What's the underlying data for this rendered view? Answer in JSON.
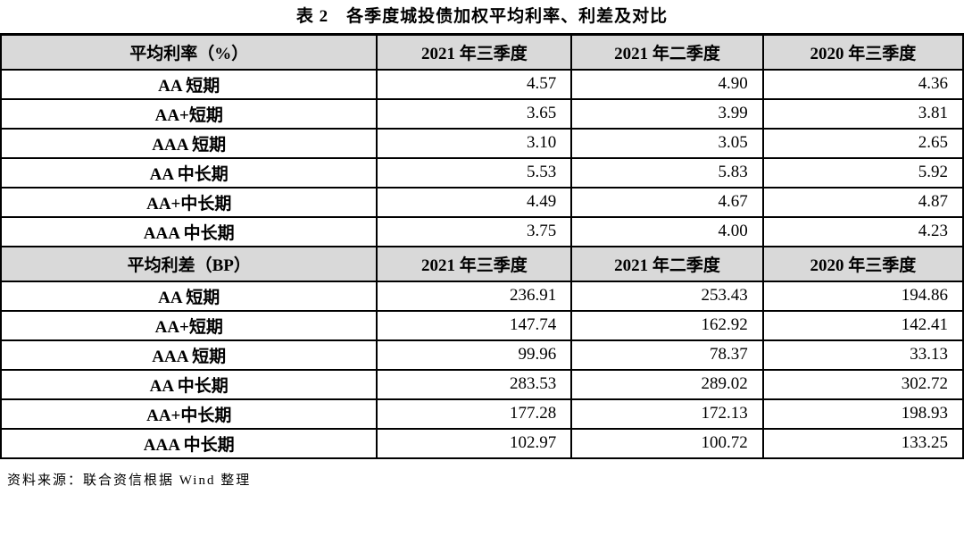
{
  "title": "表 2　各季度城投债加权平均利率、利差及对比",
  "source_note": "资料来源：联合资信根据 Wind 整理",
  "colors": {
    "header_bg": "#d9d9d9",
    "border": "#000000",
    "text": "#000000",
    "background": "#ffffff"
  },
  "sections": [
    {
      "header_label": "平均利率（%）",
      "columns": [
        "2021 年三季度",
        "2021 年二季度",
        "2020 年三季度"
      ],
      "rows": [
        {
          "label": "AA 短期",
          "values": [
            "4.57",
            "4.90",
            "4.36"
          ]
        },
        {
          "label": "AA+短期",
          "values": [
            "3.65",
            "3.99",
            "3.81"
          ]
        },
        {
          "label": "AAA 短期",
          "values": [
            "3.10",
            "3.05",
            "2.65"
          ]
        },
        {
          "label": "AA 中长期",
          "values": [
            "5.53",
            "5.83",
            "5.92"
          ]
        },
        {
          "label": "AA+中长期",
          "values": [
            "4.49",
            "4.67",
            "4.87"
          ]
        },
        {
          "label": "AAA 中长期",
          "values": [
            "3.75",
            "4.00",
            "4.23"
          ]
        }
      ]
    },
    {
      "header_label": "平均利差（BP）",
      "columns": [
        "2021 年三季度",
        "2021 年二季度",
        "2020 年三季度"
      ],
      "rows": [
        {
          "label": "AA 短期",
          "values": [
            "236.91",
            "253.43",
            "194.86"
          ]
        },
        {
          "label": "AA+短期",
          "values": [
            "147.74",
            "162.92",
            "142.41"
          ]
        },
        {
          "label": "AAA 短期",
          "values": [
            "99.96",
            "78.37",
            "33.13"
          ]
        },
        {
          "label": "AA 中长期",
          "values": [
            "283.53",
            "289.02",
            "302.72"
          ]
        },
        {
          "label": "AA+中长期",
          "values": [
            "177.28",
            "172.13",
            "198.93"
          ]
        },
        {
          "label": "AAA 中长期",
          "values": [
            "102.97",
            "100.72",
            "133.25"
          ]
        }
      ]
    }
  ],
  "chart_data": [
    {
      "type": "table",
      "title": "平均利率（%）",
      "categories": [
        "AA 短期",
        "AA+短期",
        "AAA 短期",
        "AA 中长期",
        "AA+中长期",
        "AAA 中长期"
      ],
      "series": [
        {
          "name": "2021 年三季度",
          "values": [
            4.57,
            3.65,
            3.1,
            5.53,
            4.49,
            3.75
          ]
        },
        {
          "name": "2021 年二季度",
          "values": [
            4.9,
            3.99,
            3.05,
            5.83,
            4.67,
            4.0
          ]
        },
        {
          "name": "2020 年三季度",
          "values": [
            4.36,
            3.81,
            2.65,
            5.92,
            4.87,
            4.23
          ]
        }
      ]
    },
    {
      "type": "table",
      "title": "平均利差（BP）",
      "categories": [
        "AA 短期",
        "AA+短期",
        "AAA 短期",
        "AA 中长期",
        "AA+中长期",
        "AAA 中长期"
      ],
      "series": [
        {
          "name": "2021 年三季度",
          "values": [
            236.91,
            147.74,
            99.96,
            283.53,
            177.28,
            102.97
          ]
        },
        {
          "name": "2021 年二季度",
          "values": [
            253.43,
            162.92,
            78.37,
            289.02,
            172.13,
            100.72
          ]
        },
        {
          "name": "2020 年三季度",
          "values": [
            194.86,
            142.41,
            33.13,
            302.72,
            198.93,
            133.25
          ]
        }
      ]
    }
  ]
}
